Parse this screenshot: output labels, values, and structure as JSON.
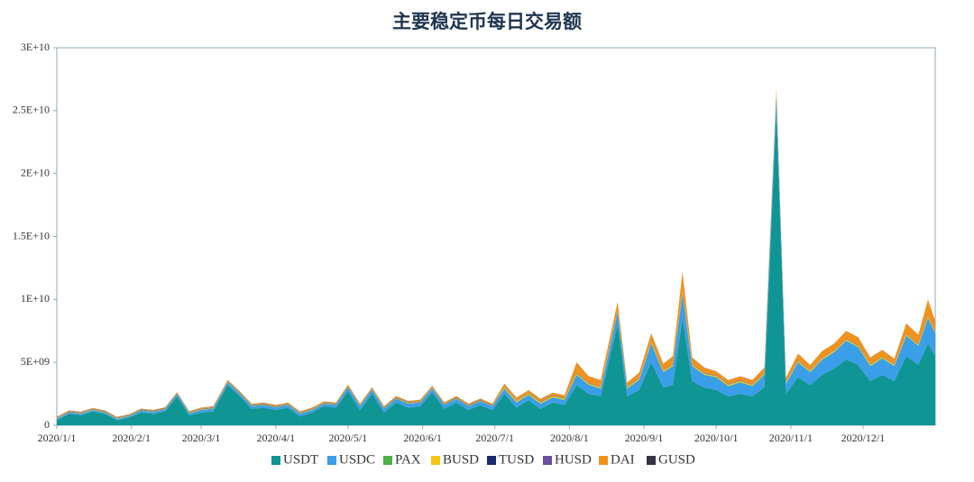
{
  "chart_data": {
    "type": "stacked_area",
    "title": "主要稳定币每日交易额",
    "x": [
      "2020/1/1",
      "2020/1/6",
      "2020/1/11",
      "2020/1/16",
      "2020/1/21",
      "2020/1/26",
      "2020/1/31",
      "2020/2/5",
      "2020/2/10",
      "2020/2/15",
      "2020/2/20",
      "2020/2/25",
      "2020/3/1",
      "2020/3/6",
      "2020/3/12",
      "2020/3/17",
      "2020/3/22",
      "2020/3/27",
      "2020/4/1",
      "2020/4/6",
      "2020/4/11",
      "2020/4/16",
      "2020/4/21",
      "2020/4/26",
      "2020/5/1",
      "2020/5/6",
      "2020/5/11",
      "2020/5/16",
      "2020/5/21",
      "2020/5/26",
      "2020/5/31",
      "2020/6/5",
      "2020/6/10",
      "2020/6/15",
      "2020/6/20",
      "2020/6/25",
      "2020/6/30",
      "2020/7/5",
      "2020/7/10",
      "2020/7/15",
      "2020/7/20",
      "2020/7/25",
      "2020/7/30",
      "2020/8/4",
      "2020/8/9",
      "2020/8/14",
      "2020/8/21",
      "2020/8/25",
      "2020/8/30",
      "2020/9/4",
      "2020/9/9",
      "2020/9/13",
      "2020/9/17",
      "2020/9/21",
      "2020/9/26",
      "2020/10/1",
      "2020/10/6",
      "2020/10/11",
      "2020/10/16",
      "2020/10/21",
      "2020/10/26",
      "2020/10/30",
      "2020/11/4",
      "2020/11/9",
      "2020/11/14",
      "2020/11/19",
      "2020/11/24",
      "2020/11/29",
      "2020/12/4",
      "2020/12/9",
      "2020/12/14",
      "2020/12/19",
      "2020/12/24",
      "2020/12/28",
      "2020/12/31"
    ],
    "xlim": [
      "2020/1/1",
      "2020/12/31"
    ],
    "xticks": [
      "2020/1/1",
      "2020/2/1",
      "2020/3/1",
      "2020/4/1",
      "2020/5/1",
      "2020/6/1",
      "2020/7/1",
      "2020/8/1",
      "2020/9/1",
      "2020/10/1",
      "2020/11/1",
      "2020/12/1"
    ],
    "ylim": [
      0,
      30000000000.0
    ],
    "yticks": [
      0,
      {
        "value": 5000000000.0,
        "label": "5E+09"
      },
      {
        "value": 10000000000.0,
        "label": "1E+10"
      },
      {
        "value": 15000000000.0,
        "label": "1.5E+10"
      },
      {
        "value": 20000000000.0,
        "label": "2E+10"
      },
      {
        "value": 25000000000.0,
        "label": "2.5E+10"
      },
      {
        "value": 30000000000.0,
        "label": "3E+10"
      }
    ],
    "legend": "bottom",
    "series": [
      {
        "name": "USDT",
        "color": "#0e9594",
        "values": [
          400000000.0,
          900000000.0,
          800000000.0,
          1100000000.0,
          900000000.0,
          400000000.0,
          600000000.0,
          1000000000.0,
          900000000.0,
          1100000000.0,
          2300000000.0,
          800000000.0,
          1000000000.0,
          1100000000.0,
          3200000000.0,
          2300000000.0,
          1300000000.0,
          1400000000.0,
          1200000000.0,
          1400000000.0,
          700000000.0,
          1000000000.0,
          1500000000.0,
          1400000000.0,
          2700000000.0,
          1200000000.0,
          2500000000.0,
          1000000000.0,
          1800000000.0,
          1400000000.0,
          1500000000.0,
          2600000000.0,
          1300000000.0,
          1800000000.0,
          1200000000.0,
          1600000000.0,
          1200000000.0,
          2500000000.0,
          1400000000.0,
          2000000000.0,
          1300000000.0,
          1800000000.0,
          1600000000.0,
          3200000000.0,
          2500000000.0,
          2300000000.0,
          8000000000.0,
          2300000000.0,
          2800000000.0,
          5000000000.0,
          3000000000.0,
          3200000000.0,
          8500000000.0,
          3500000000.0,
          3000000000.0,
          2800000000.0,
          2300000000.0,
          2500000000.0,
          2300000000.0,
          3000000000.0,
          25000000000.0,
          2500000000.0,
          3800000000.0,
          3200000000.0,
          4000000000.0,
          4500000000.0,
          5200000000.0,
          4800000000.0,
          3500000000.0,
          4000000000.0,
          3500000000.0,
          5500000000.0,
          4800000000.0,
          6500000000.0,
          5500000000.0
        ]
      },
      {
        "name": "USDC",
        "color": "#3b9ee8",
        "values": [
          100000000.0,
          100000000.0,
          100000000.0,
          100000000.0,
          100000000.0,
          100000000.0,
          100000000.0,
          150000000.0,
          150000000.0,
          150000000.0,
          150000000.0,
          150000000.0,
          200000000.0,
          200000000.0,
          200000000.0,
          200000000.0,
          200000000.0,
          200000000.0,
          200000000.0,
          200000000.0,
          200000000.0,
          200000000.0,
          200000000.0,
          200000000.0,
          300000000.0,
          300000000.0,
          300000000.0,
          300000000.0,
          300000000.0,
          300000000.0,
          300000000.0,
          300000000.0,
          300000000.0,
          300000000.0,
          300000000.0,
          300000000.0,
          300000000.0,
          400000000.0,
          400000000.0,
          400000000.0,
          400000000.0,
          400000000.0,
          400000000.0,
          800000000.0,
          700000000.0,
          600000000.0,
          1000000000.0,
          600000000.0,
          800000000.0,
          1500000000.0,
          1200000000.0,
          1500000000.0,
          2000000000.0,
          1200000000.0,
          1000000000.0,
          1000000000.0,
          800000000.0,
          900000000.0,
          800000000.0,
          1000000000.0,
          1200000000.0,
          800000000.0,
          1200000000.0,
          1000000000.0,
          1200000000.0,
          1300000000.0,
          1500000000.0,
          1400000000.0,
          1200000000.0,
          1300000000.0,
          1200000000.0,
          1600000000.0,
          1500000000.0,
          2000000000.0,
          1800000000.0
        ]
      },
      {
        "name": "PAX",
        "color": "#4db04a",
        "values": [
          30000000.0,
          30000000.0,
          30000000.0,
          30000000.0,
          30000000.0,
          30000000.0,
          30000000.0,
          30000000.0,
          30000000.0,
          30000000.0,
          30000000.0,
          30000000.0,
          30000000.0,
          30000000.0,
          30000000.0,
          30000000.0,
          30000000.0,
          30000000.0,
          30000000.0,
          30000000.0,
          30000000.0,
          30000000.0,
          30000000.0,
          30000000.0,
          30000000.0,
          30000000.0,
          30000000.0,
          30000000.0,
          30000000.0,
          30000000.0,
          30000000.0,
          30000000.0,
          30000000.0,
          30000000.0,
          30000000.0,
          30000000.0,
          30000000.0,
          30000000.0,
          30000000.0,
          30000000.0,
          30000000.0,
          30000000.0,
          30000000.0,
          30000000.0,
          30000000.0,
          30000000.0,
          30000000.0,
          30000000.0,
          30000000.0,
          30000000.0,
          30000000.0,
          30000000.0,
          30000000.0,
          30000000.0,
          30000000.0,
          30000000.0,
          30000000.0,
          30000000.0,
          30000000.0,
          30000000.0,
          30000000.0,
          30000000.0,
          30000000.0,
          30000000.0,
          30000000.0,
          30000000.0,
          30000000.0,
          30000000.0,
          30000000.0,
          30000000.0,
          30000000.0,
          30000000.0,
          30000000.0,
          30000000.0,
          30000000.0
        ]
      },
      {
        "name": "BUSD",
        "color": "#f5c518",
        "values": [
          30000000.0,
          30000000.0,
          30000000.0,
          30000000.0,
          30000000.0,
          30000000.0,
          30000000.0,
          30000000.0,
          30000000.0,
          30000000.0,
          30000000.0,
          30000000.0,
          30000000.0,
          30000000.0,
          30000000.0,
          30000000.0,
          30000000.0,
          30000000.0,
          30000000.0,
          30000000.0,
          30000000.0,
          30000000.0,
          30000000.0,
          30000000.0,
          30000000.0,
          30000000.0,
          30000000.0,
          30000000.0,
          30000000.0,
          30000000.0,
          30000000.0,
          30000000.0,
          30000000.0,
          30000000.0,
          30000000.0,
          30000000.0,
          30000000.0,
          100000000.0,
          100000000.0,
          100000000.0,
          100000000.0,
          100000000.0,
          100000000.0,
          100000000.0,
          100000000.0,
          100000000.0,
          100000000.0,
          100000000.0,
          100000000.0,
          100000000.0,
          100000000.0,
          100000000.0,
          100000000.0,
          100000000.0,
          100000000.0,
          100000000.0,
          100000000.0,
          100000000.0,
          100000000.0,
          100000000.0,
          100000000.0,
          100000000.0,
          100000000.0,
          100000000.0,
          100000000.0,
          100000000.0,
          100000000.0,
          100000000.0,
          100000000.0,
          100000000.0,
          100000000.0,
          100000000.0,
          100000000.0,
          100000000.0,
          100000000.0
        ]
      },
      {
        "name": "TUSD",
        "color": "#1a2a6c",
        "values": [
          20000000.0,
          20000000.0,
          20000000.0,
          20000000.0,
          20000000.0,
          20000000.0,
          20000000.0,
          20000000.0,
          20000000.0,
          20000000.0,
          20000000.0,
          20000000.0,
          20000000.0,
          20000000.0,
          20000000.0,
          20000000.0,
          20000000.0,
          20000000.0,
          20000000.0,
          20000000.0,
          20000000.0,
          20000000.0,
          20000000.0,
          20000000.0,
          20000000.0,
          20000000.0,
          20000000.0,
          20000000.0,
          20000000.0,
          20000000.0,
          20000000.0,
          20000000.0,
          20000000.0,
          20000000.0,
          20000000.0,
          20000000.0,
          20000000.0,
          20000000.0,
          20000000.0,
          20000000.0,
          20000000.0,
          20000000.0,
          20000000.0,
          20000000.0,
          20000000.0,
          20000000.0,
          20000000.0,
          20000000.0,
          20000000.0,
          20000000.0,
          20000000.0,
          20000000.0,
          20000000.0,
          20000000.0,
          20000000.0,
          20000000.0,
          20000000.0,
          20000000.0,
          20000000.0,
          20000000.0,
          20000000.0,
          20000000.0,
          20000000.0,
          20000000.0,
          20000000.0,
          20000000.0,
          20000000.0,
          20000000.0,
          20000000.0,
          20000000.0,
          20000000.0,
          20000000.0,
          20000000.0,
          20000000.0,
          20000000.0
        ]
      },
      {
        "name": "HUSD",
        "color": "#6a4fa0",
        "values": [
          30000000.0,
          30000000.0,
          30000000.0,
          30000000.0,
          30000000.0,
          30000000.0,
          30000000.0,
          30000000.0,
          30000000.0,
          30000000.0,
          30000000.0,
          30000000.0,
          30000000.0,
          30000000.0,
          30000000.0,
          30000000.0,
          30000000.0,
          30000000.0,
          30000000.0,
          30000000.0,
          30000000.0,
          30000000.0,
          30000000.0,
          30000000.0,
          30000000.0,
          30000000.0,
          30000000.0,
          30000000.0,
          30000000.0,
          30000000.0,
          30000000.0,
          30000000.0,
          30000000.0,
          30000000.0,
          30000000.0,
          30000000.0,
          30000000.0,
          30000000.0,
          30000000.0,
          30000000.0,
          30000000.0,
          30000000.0,
          30000000.0,
          30000000.0,
          30000000.0,
          30000000.0,
          30000000.0,
          30000000.0,
          30000000.0,
          30000000.0,
          30000000.0,
          30000000.0,
          30000000.0,
          30000000.0,
          30000000.0,
          30000000.0,
          30000000.0,
          30000000.0,
          30000000.0,
          30000000.0,
          30000000.0,
          30000000.0,
          30000000.0,
          30000000.0,
          30000000.0,
          30000000.0,
          30000000.0,
          30000000.0,
          30000000.0,
          30000000.0,
          30000000.0,
          30000000.0,
          30000000.0,
          30000000.0,
          30000000.0
        ]
      },
      {
        "name": "DAI",
        "color": "#f0921c",
        "values": [
          50000000.0,
          50000000.0,
          50000000.0,
          50000000.0,
          50000000.0,
          50000000.0,
          50000000.0,
          50000000.0,
          50000000.0,
          50000000.0,
          50000000.0,
          50000000.0,
          80000000.0,
          80000000.0,
          80000000.0,
          80000000.0,
          80000000.0,
          80000000.0,
          80000000.0,
          80000000.0,
          80000000.0,
          80000000.0,
          80000000.0,
          80000000.0,
          100000000.0,
          100000000.0,
          100000000.0,
          100000000.0,
          100000000.0,
          100000000.0,
          100000000.0,
          100000000.0,
          100000000.0,
          100000000.0,
          100000000.0,
          100000000.0,
          100000000.0,
          200000000.0,
          200000000.0,
          200000000.0,
          200000000.0,
          200000000.0,
          200000000.0,
          800000000.0,
          500000000.0,
          500000000.0,
          600000000.0,
          300000000.0,
          400000000.0,
          600000000.0,
          500000000.0,
          600000000.0,
          1500000000.0,
          500000000.0,
          400000000.0,
          300000000.0,
          300000000.0,
          300000000.0,
          300000000.0,
          400000000.0,
          400000000.0,
          300000000.0,
          500000000.0,
          400000000.0,
          500000000.0,
          500000000.0,
          600000000.0,
          600000000.0,
          500000000.0,
          500000000.0,
          400000000.0,
          800000000.0,
          700000000.0,
          1300000000.0,
          800000000.0
        ]
      },
      {
        "name": "GUSD",
        "color": "#333344",
        "values": [
          10000000.0,
          10000000.0,
          10000000.0,
          10000000.0,
          10000000.0,
          10000000.0,
          10000000.0,
          10000000.0,
          10000000.0,
          10000000.0,
          10000000.0,
          10000000.0,
          10000000.0,
          10000000.0,
          10000000.0,
          10000000.0,
          10000000.0,
          10000000.0,
          10000000.0,
          10000000.0,
          10000000.0,
          10000000.0,
          10000000.0,
          10000000.0,
          10000000.0,
          10000000.0,
          10000000.0,
          10000000.0,
          10000000.0,
          10000000.0,
          10000000.0,
          10000000.0,
          10000000.0,
          10000000.0,
          10000000.0,
          10000000.0,
          10000000.0,
          10000000.0,
          10000000.0,
          10000000.0,
          10000000.0,
          10000000.0,
          10000000.0,
          10000000.0,
          10000000.0,
          10000000.0,
          10000000.0,
          10000000.0,
          10000000.0,
          10000000.0,
          10000000.0,
          10000000.0,
          10000000.0,
          10000000.0,
          10000000.0,
          10000000.0,
          10000000.0,
          10000000.0,
          10000000.0,
          10000000.0,
          10000000.0,
          10000000.0,
          10000000.0,
          10000000.0,
          10000000.0,
          10000000.0,
          10000000.0,
          10000000.0,
          10000000.0,
          10000000.0,
          10000000.0,
          10000000.0,
          10000000.0,
          10000000.0,
          10000000.0
        ]
      }
    ]
  }
}
